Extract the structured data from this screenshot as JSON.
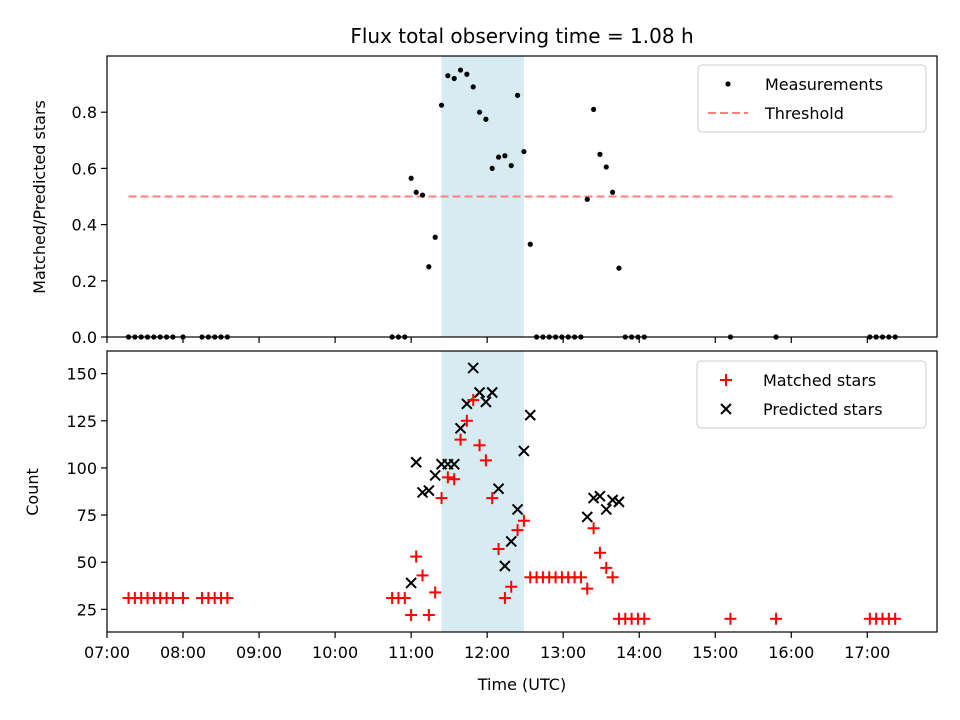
{
  "chart_data": [
    {
      "type": "scatter",
      "title": "Flux total observing time = 1.08 h",
      "xlabel": "",
      "ylabel": "Matched/Predicted stars",
      "xlim": [
        "07:00",
        "17:55"
      ],
      "ylim": [
        0,
        1.0
      ],
      "yticks": [
        0.0,
        0.2,
        0.4,
        0.6,
        0.8
      ],
      "ytick_labels": [
        "0.0",
        "0.2",
        "0.4",
        "0.6",
        "0.8"
      ],
      "highlight_span": {
        "start": "11:24",
        "end": "12:29"
      },
      "legend_position": "top-right",
      "grid": false,
      "series": [
        {
          "name": "Measurements",
          "color": "#000000",
          "marker": "dot",
          "points": [
            [
              "07:17",
              0
            ],
            [
              "07:22",
              0
            ],
            [
              "07:27",
              0
            ],
            [
              "07:32",
              0
            ],
            [
              "07:37",
              0
            ],
            [
              "07:42",
              0
            ],
            [
              "07:47",
              0
            ],
            [
              "07:52",
              0
            ],
            [
              "08:00",
              0
            ],
            [
              "08:15",
              0
            ],
            [
              "08:20",
              0
            ],
            [
              "08:25",
              0
            ],
            [
              "08:30",
              0
            ],
            [
              "08:35",
              0
            ],
            [
              "10:45",
              0
            ],
            [
              "10:50",
              0
            ],
            [
              "10:55",
              0
            ],
            [
              "11:00",
              0.565
            ],
            [
              "11:04",
              0.515
            ],
            [
              "11:09",
              0.505
            ],
            [
              "11:14",
              0.25
            ],
            [
              "11:19",
              0.355
            ],
            [
              "11:24",
              0.825
            ],
            [
              "11:29",
              0.93
            ],
            [
              "11:34",
              0.92
            ],
            [
              "11:39",
              0.95
            ],
            [
              "11:44",
              0.935
            ],
            [
              "11:49",
              0.89
            ],
            [
              "11:54",
              0.8
            ],
            [
              "11:59",
              0.775
            ],
            [
              "12:04",
              0.6
            ],
            [
              "12:09",
              0.64
            ],
            [
              "12:14",
              0.645
            ],
            [
              "12:19",
              0.61
            ],
            [
              "12:24",
              0.86
            ],
            [
              "12:29",
              0.66
            ],
            [
              "12:34",
              0.33
            ],
            [
              "12:39",
              0
            ],
            [
              "12:44",
              0
            ],
            [
              "12:49",
              0
            ],
            [
              "12:54",
              0
            ],
            [
              "12:59",
              0
            ],
            [
              "13:04",
              0
            ],
            [
              "13:09",
              0
            ],
            [
              "13:14",
              0
            ],
            [
              "13:19",
              0.49
            ],
            [
              "13:24",
              0.81
            ],
            [
              "13:29",
              0.65
            ],
            [
              "13:34",
              0.605
            ],
            [
              "13:39",
              0.515
            ],
            [
              "13:44",
              0.245
            ],
            [
              "13:49",
              0
            ],
            [
              "13:54",
              0
            ],
            [
              "13:59",
              0
            ],
            [
              "14:04",
              0
            ],
            [
              "15:12",
              0
            ],
            [
              "15:48",
              0
            ],
            [
              "17:02",
              0
            ],
            [
              "17:07",
              0
            ],
            [
              "17:12",
              0
            ],
            [
              "17:17",
              0
            ],
            [
              "17:22",
              0
            ]
          ]
        },
        {
          "name": "Threshold",
          "color": "#ff7f7f",
          "style": "dashed",
          "points": [
            [
              "07:17",
              0.5
            ],
            [
              "17:22",
              0.5
            ]
          ]
        }
      ]
    },
    {
      "type": "scatter",
      "title": "",
      "xlabel": "Time (UTC)",
      "ylabel": "Count",
      "xlim": [
        "07:00",
        "17:55"
      ],
      "ylim": [
        13,
        162
      ],
      "yticks": [
        25,
        50,
        75,
        100,
        125,
        150
      ],
      "xticks": [
        "07:00",
        "08:00",
        "09:00",
        "10:00",
        "11:00",
        "12:00",
        "13:00",
        "14:00",
        "15:00",
        "16:00",
        "17:00"
      ],
      "highlight_span": {
        "start": "11:24",
        "end": "12:29"
      },
      "legend_position": "top-right",
      "grid": false,
      "series": [
        {
          "name": "Matched stars",
          "color": "#ff0000",
          "marker": "plus",
          "points": [
            [
              "07:17",
              31
            ],
            [
              "07:22",
              31
            ],
            [
              "07:27",
              31
            ],
            [
              "07:32",
              31
            ],
            [
              "07:37",
              31
            ],
            [
              "07:42",
              31
            ],
            [
              "07:47",
              31
            ],
            [
              "07:52",
              31
            ],
            [
              "08:00",
              31
            ],
            [
              "08:15",
              31
            ],
            [
              "08:20",
              31
            ],
            [
              "08:25",
              31
            ],
            [
              "08:30",
              31
            ],
            [
              "08:35",
              31
            ],
            [
              "10:45",
              31
            ],
            [
              "10:50",
              31
            ],
            [
              "10:55",
              31
            ],
            [
              "11:00",
              22
            ],
            [
              "11:04",
              53
            ],
            [
              "11:09",
              43
            ],
            [
              "11:14",
              22
            ],
            [
              "11:19",
              34
            ],
            [
              "11:24",
              84
            ],
            [
              "11:29",
              95
            ],
            [
              "11:34",
              94
            ],
            [
              "11:39",
              115
            ],
            [
              "11:44",
              125
            ],
            [
              "11:49",
              136
            ],
            [
              "11:54",
              112
            ],
            [
              "11:59",
              104
            ],
            [
              "12:04",
              84
            ],
            [
              "12:09",
              57
            ],
            [
              "12:14",
              31
            ],
            [
              "12:19",
              37
            ],
            [
              "12:24",
              67
            ],
            [
              "12:29",
              72
            ],
            [
              "12:34",
              42
            ],
            [
              "12:39",
              42
            ],
            [
              "12:44",
              42
            ],
            [
              "12:49",
              42
            ],
            [
              "12:54",
              42
            ],
            [
              "12:59",
              42
            ],
            [
              "13:04",
              42
            ],
            [
              "13:09",
              42
            ],
            [
              "13:14",
              42
            ],
            [
              "13:19",
              36
            ],
            [
              "13:24",
              68
            ],
            [
              "13:29",
              55
            ],
            [
              "13:34",
              47
            ],
            [
              "13:39",
              42
            ],
            [
              "13:44",
              20
            ],
            [
              "13:49",
              20
            ],
            [
              "13:54",
              20
            ],
            [
              "13:59",
              20
            ],
            [
              "14:04",
              20
            ],
            [
              "15:12",
              20
            ],
            [
              "15:48",
              20
            ],
            [
              "17:02",
              20
            ],
            [
              "17:07",
              20
            ],
            [
              "17:12",
              20
            ],
            [
              "17:17",
              20
            ],
            [
              "17:22",
              20
            ]
          ]
        },
        {
          "name": "Predicted stars",
          "color": "#000000",
          "marker": "x",
          "points": [
            [
              "11:00",
              39
            ],
            [
              "11:04",
              103
            ],
            [
              "11:09",
              87
            ],
            [
              "11:14",
              88
            ],
            [
              "11:19",
              96
            ],
            [
              "11:24",
              102
            ],
            [
              "11:29",
              102
            ],
            [
              "11:34",
              102
            ],
            [
              "11:39",
              121
            ],
            [
              "11:44",
              134
            ],
            [
              "11:49",
              153
            ],
            [
              "11:54",
              140
            ],
            [
              "11:59",
              135
            ],
            [
              "12:04",
              140
            ],
            [
              "12:09",
              89
            ],
            [
              "12:14",
              48
            ],
            [
              "12:19",
              61
            ],
            [
              "12:24",
              78
            ],
            [
              "12:29",
              109
            ],
            [
              "12:34",
              128
            ],
            [
              "13:19",
              74
            ],
            [
              "13:24",
              84
            ],
            [
              "13:29",
              85
            ],
            [
              "13:34",
              78
            ],
            [
              "13:39",
              83
            ],
            [
              "13:44",
              82
            ]
          ]
        }
      ]
    }
  ]
}
